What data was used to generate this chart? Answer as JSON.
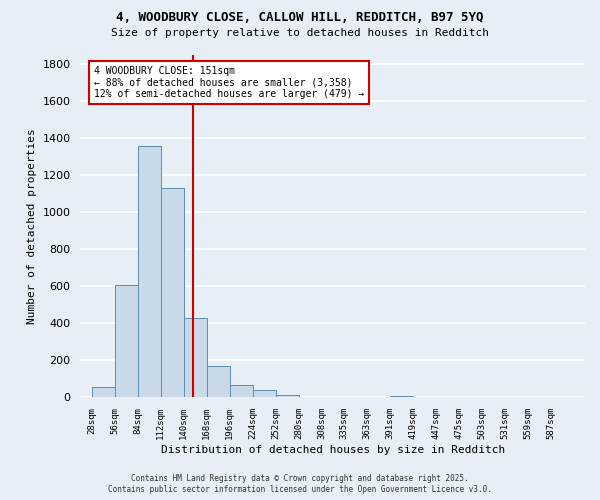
{
  "title_line1": "4, WOODBURY CLOSE, CALLOW HILL, REDDITCH, B97 5YQ",
  "title_line2": "Size of property relative to detached houses in Redditch",
  "xlabel": "Distribution of detached houses by size in Redditch",
  "ylabel": "Number of detached properties",
  "bin_labels": [
    "28sqm",
    "56sqm",
    "84sqm",
    "112sqm",
    "140sqm",
    "168sqm",
    "196sqm",
    "224sqm",
    "252sqm",
    "280sqm",
    "308sqm",
    "335sqm",
    "363sqm",
    "391sqm",
    "419sqm",
    "447sqm",
    "475sqm",
    "503sqm",
    "531sqm",
    "559sqm",
    "587sqm"
  ],
  "bin_left_edges": [
    28,
    56,
    84,
    112,
    140,
    168,
    196,
    224,
    252,
    280,
    308,
    335,
    363,
    391,
    419,
    447,
    475,
    503,
    531,
    559,
    587
  ],
  "bar_heights": [
    55,
    605,
    1360,
    1130,
    430,
    170,
    65,
    40,
    15,
    0,
    0,
    0,
    0,
    10,
    0,
    0,
    0,
    0,
    0,
    0
  ],
  "bar_color": "#c9d9e8",
  "bar_edge_color": "#5b8db8",
  "background_color": "#e8eef5",
  "grid_color": "#ffffff",
  "vline_x": 151,
  "vline_color": "#cc0000",
  "annotation_text": "4 WOODBURY CLOSE: 151sqm\n← 88% of detached houses are smaller (3,358)\n12% of semi-detached houses are larger (479) →",
  "annotation_box_color": "white",
  "annotation_box_edge": "#cc0000",
  "ylim": [
    0,
    1850
  ],
  "yticks": [
    0,
    200,
    400,
    600,
    800,
    1000,
    1200,
    1400,
    1600,
    1800
  ],
  "footer_line1": "Contains HM Land Registry data © Crown copyright and database right 2025.",
  "footer_line2": "Contains public sector information licensed under the Open Government Licence v3.0."
}
